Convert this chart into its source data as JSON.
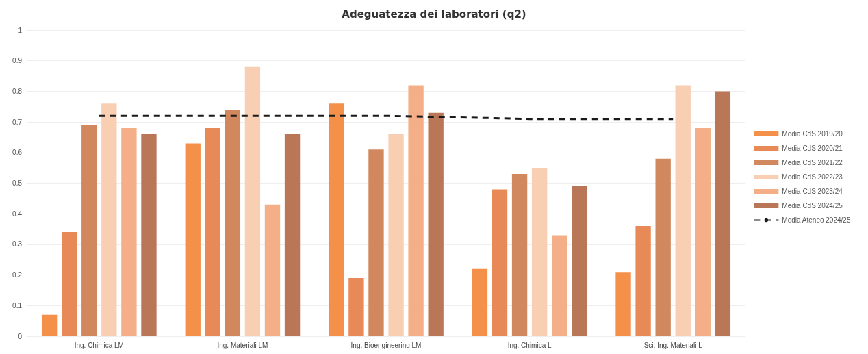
{
  "chart_data": {
    "type": "bar",
    "title": "Adeguatezza dei laboratori (q2)",
    "categories": [
      "Ing. Chimica LM",
      "Ing. Materiali LM",
      "Ing. Bioengineering LM",
      "Ing. Chimica L",
      "Sci. Ing. Materiali L"
    ],
    "series": [
      {
        "name": "Media CdS 2019/20",
        "color": "#f4904a",
        "values": [
          0.07,
          0.63,
          0.76,
          0.22,
          0.21
        ]
      },
      {
        "name": "Media CdS 2020/21",
        "color": "#e88a58",
        "values": [
          0.34,
          0.68,
          0.19,
          0.48,
          0.36
        ]
      },
      {
        "name": "Media CdS 2021/22",
        "color": "#d2885e",
        "values": [
          0.69,
          0.74,
          0.61,
          0.53,
          0.58
        ]
      },
      {
        "name": "Media CdS 2022/23",
        "color": "#f8cfb3",
        "values": [
          0.76,
          0.88,
          0.66,
          0.55,
          0.82
        ]
      },
      {
        "name": "Media CdS 2023/24",
        "color": "#f5af88",
        "values": [
          0.68,
          0.43,
          0.82,
          0.33,
          0.68
        ]
      },
      {
        "name": "Media CdS 2024/25",
        "color": "#b97758",
        "values": [
          0.66,
          0.66,
          0.73,
          0.49,
          0.8
        ]
      },
      {
        "name": "Media Ateneo 2024/25",
        "type": "line",
        "color": "#1a1a1a",
        "line_style": "dashed",
        "marker": "none",
        "values": [
          0.72,
          0.72,
          0.72,
          0.71,
          0.71
        ]
      }
    ],
    "ylim": [
      0,
      1
    ],
    "yticks": [
      0,
      0.1,
      0.2,
      0.3,
      0.4,
      0.5,
      0.6,
      0.7,
      0.8,
      0.9,
      1
    ],
    "grid": "y",
    "legend": "right"
  }
}
